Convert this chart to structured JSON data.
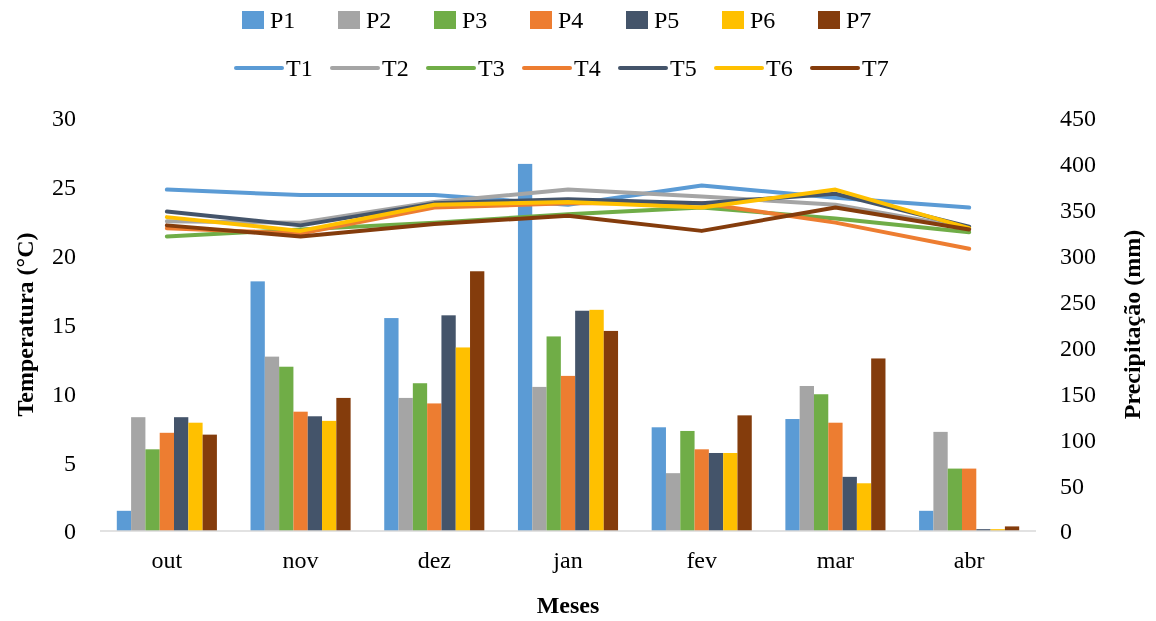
{
  "chart_data": {
    "type": "bar",
    "xlabel": "Meses",
    "ylabel": "Temperatura (°C)",
    "y2label": "Precipitação (mm)",
    "categories": [
      "out",
      "nov",
      "dez",
      "jan",
      "fev",
      "mar",
      "abr"
    ],
    "ylim": [
      0,
      30
    ],
    "yticks": [
      0,
      5,
      10,
      15,
      20,
      25,
      30
    ],
    "y2lim": [
      0,
      450
    ],
    "y2ticks": [
      0,
      50,
      100,
      150,
      200,
      250,
      300,
      350,
      400,
      450
    ],
    "grid": false,
    "legend": "top",
    "series": [
      {
        "name": "P1",
        "axis": "y2",
        "color": "#5b9bd5",
        "values": [
          22,
          272,
          232,
          400,
          113,
          122,
          22
        ]
      },
      {
        "name": "P2",
        "axis": "y2",
        "color": "#a5a5a5",
        "values": [
          124,
          190,
          145,
          157,
          63,
          158,
          108
        ]
      },
      {
        "name": "P3",
        "axis": "y2",
        "color": "#70ad47",
        "values": [
          89,
          179,
          161,
          212,
          109,
          149,
          68
        ]
      },
      {
        "name": "P4",
        "axis": "y2",
        "color": "#ed7d31",
        "values": [
          107,
          130,
          139,
          169,
          89,
          118,
          68
        ]
      },
      {
        "name": "P5",
        "axis": "y2",
        "color": "#44546a",
        "values": [
          124,
          125,
          235,
          240,
          85,
          59,
          2
        ]
      },
      {
        "name": "P6",
        "axis": "y2",
        "color": "#ffc000",
        "values": [
          118,
          120,
          200,
          241,
          85,
          52,
          2
        ]
      },
      {
        "name": "P7",
        "axis": "y2",
        "color": "#843c0c",
        "values": [
          105,
          145,
          283,
          218,
          126,
          188,
          5
        ]
      },
      {
        "name": "T1",
        "type": "line",
        "color": "#5b9bd5",
        "values": [
          24.8,
          24.4,
          24.4,
          23.7,
          25.1,
          24.2,
          23.5
        ]
      },
      {
        "name": "T2",
        "type": "line",
        "color": "#a5a5a5",
        "values": [
          22.5,
          22.4,
          23.9,
          24.8,
          24.3,
          23.7,
          22.0
        ]
      },
      {
        "name": "T3",
        "type": "line",
        "color": "#70ad47",
        "values": [
          21.4,
          21.9,
          22.4,
          23.0,
          23.5,
          22.7,
          21.7
        ]
      },
      {
        "name": "T4",
        "type": "line",
        "color": "#ed7d31",
        "values": [
          22.0,
          21.6,
          23.5,
          23.8,
          23.8,
          22.4,
          20.5
        ]
      },
      {
        "name": "T5",
        "type": "line",
        "color": "#44546a",
        "values": [
          23.2,
          22.2,
          23.8,
          24.1,
          23.8,
          24.5,
          22.1
        ]
      },
      {
        "name": "T6",
        "type": "line",
        "color": "#ffc000",
        "values": [
          22.8,
          21.8,
          23.7,
          23.9,
          23.5,
          24.8,
          22.0
        ]
      },
      {
        "name": "T7",
        "type": "line",
        "color": "#843c0c",
        "values": [
          22.2,
          21.4,
          22.3,
          22.9,
          21.8,
          23.5,
          21.9
        ]
      }
    ]
  }
}
